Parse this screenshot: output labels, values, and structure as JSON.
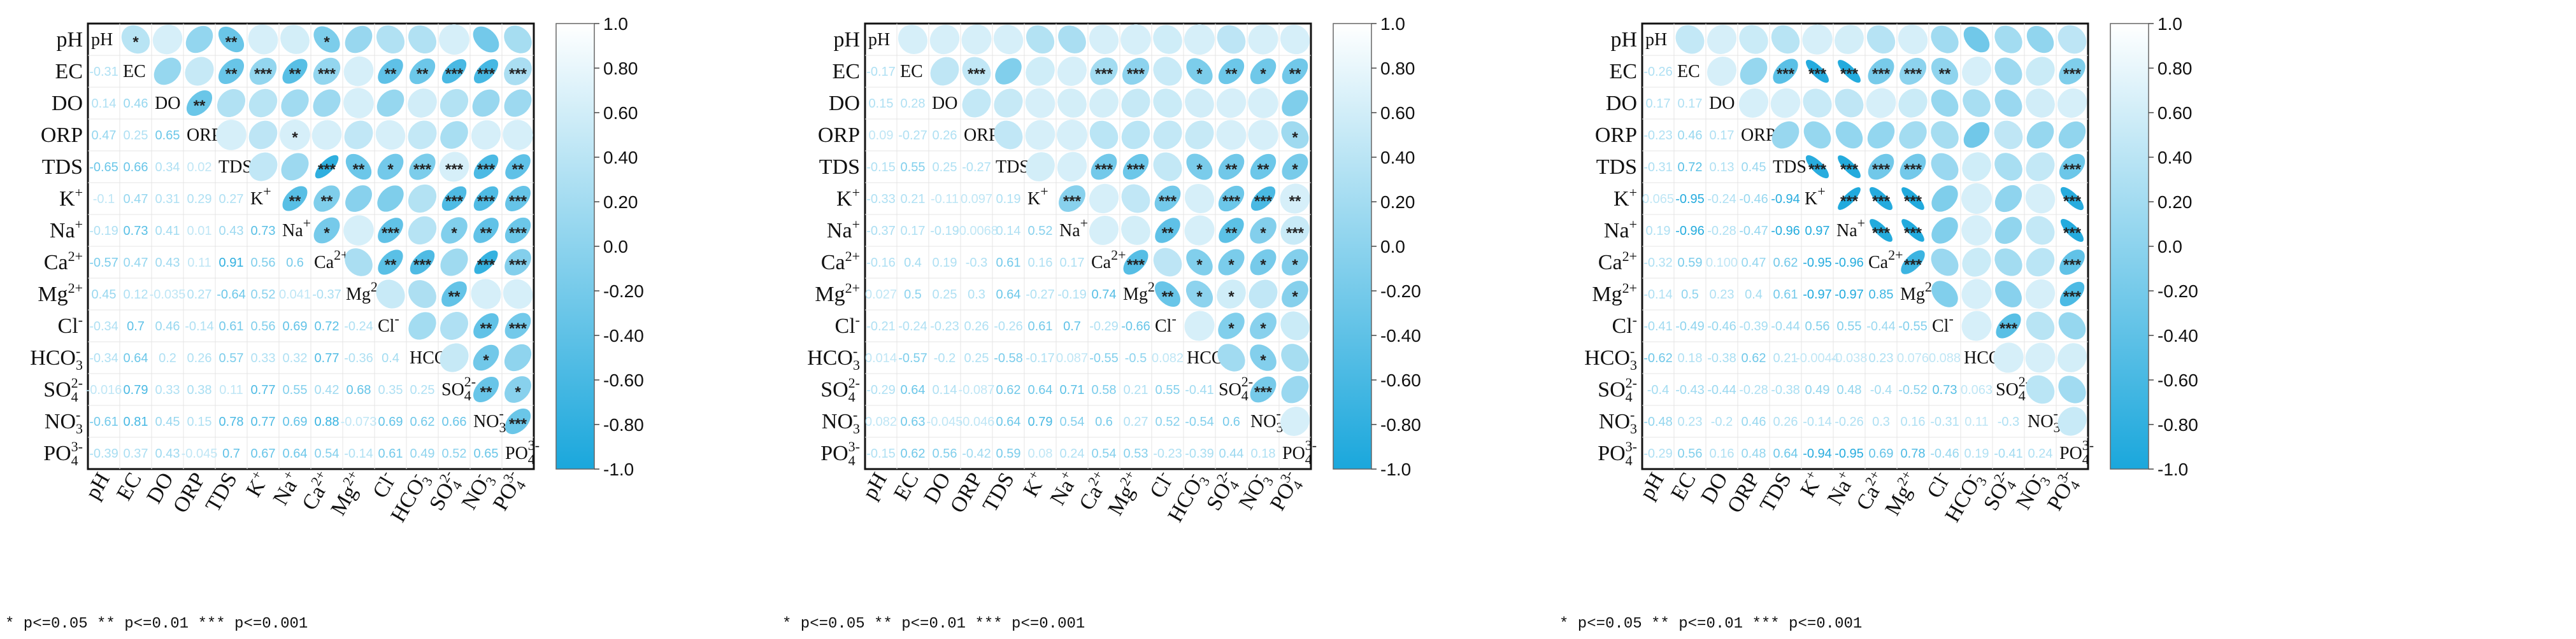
{
  "chart_data": {
    "type": "correlation-matrix",
    "variables": [
      "pH",
      "EC",
      "DO",
      "ORP",
      "TDS",
      "K+",
      "Na+",
      "Ca2+",
      "Mg2+",
      "Cl-",
      "HCO3-",
      "SO42-",
      "NO3-",
      "PO43-"
    ],
    "colorbar": {
      "min": -1.0,
      "max": 1.0,
      "ticks": [
        "1.0",
        "0.80",
        "0.60",
        "0.40",
        "0.20",
        "0.0",
        "-0.20",
        "-0.40",
        "-0.60",
        "-0.80",
        "-1.0"
      ],
      "colors": [
        "#ffffff",
        "#1aa7dc"
      ]
    },
    "significance_note": "*  p<=0.05    **  p<=0.01    ***  p<=0.001",
    "panels": [
      {
        "name": "panel-1",
        "lower": [
          [
            -0.31
          ],
          [
            0.14,
            0.46
          ],
          [
            0.47,
            0.25,
            0.65
          ],
          [
            -0.65,
            0.66,
            0.34,
            0.02
          ],
          [
            -0.1,
            0.47,
            0.31,
            0.29,
            0.27
          ],
          [
            -0.19,
            0.73,
            0.41,
            0.01,
            0.43,
            0.73
          ],
          [
            -0.57,
            0.47,
            0.43,
            0.11,
            0.91,
            0.56,
            0.6
          ],
          [
            0.45,
            0.12,
            -0.035,
            0.27,
            -0.64,
            0.52,
            0.041,
            -0.37
          ],
          [
            -0.34,
            0.7,
            0.46,
            -0.14,
            0.61,
            0.56,
            0.69,
            0.72,
            -0.24
          ],
          [
            -0.34,
            0.64,
            0.2,
            0.26,
            0.57,
            0.33,
            0.32,
            0.77,
            -0.36,
            0.4
          ],
          [
            -0.016,
            0.79,
            0.33,
            0.38,
            0.11,
            0.77,
            0.55,
            0.42,
            0.68,
            0.35,
            0.25
          ],
          [
            -0.61,
            0.81,
            0.45,
            0.15,
            0.78,
            0.77,
            0.69,
            0.88,
            -0.073,
            0.69,
            0.62,
            0.66
          ],
          [
            -0.39,
            0.37,
            0.43,
            -0.045,
            0.7,
            0.67,
            0.64,
            0.54,
            -0.14,
            0.61,
            0.49,
            0.52,
            0.65
          ]
        ],
        "stars": [
          [
            1,
            0,
            "*"
          ],
          [
            4,
            0,
            "**"
          ],
          [
            7,
            0,
            "*"
          ],
          [
            4,
            1,
            "**"
          ],
          [
            5,
            1,
            "***"
          ],
          [
            6,
            1,
            "**"
          ],
          [
            7,
            1,
            "***"
          ],
          [
            9,
            1,
            "**"
          ],
          [
            10,
            1,
            "**"
          ],
          [
            11,
            1,
            "***"
          ],
          [
            12,
            1,
            "***"
          ],
          [
            13,
            1,
            "***"
          ],
          [
            3,
            2,
            "**"
          ],
          [
            6,
            3,
            "*"
          ],
          [
            7,
            4,
            "***"
          ],
          [
            8,
            4,
            "**"
          ],
          [
            9,
            4,
            "*"
          ],
          [
            10,
            4,
            "***"
          ],
          [
            11,
            4,
            "***"
          ],
          [
            12,
            4,
            "***"
          ],
          [
            13,
            4,
            "**"
          ],
          [
            6,
            5,
            "**"
          ],
          [
            7,
            5,
            "**"
          ],
          [
            11,
            5,
            "***"
          ],
          [
            12,
            5,
            "***"
          ],
          [
            13,
            5,
            "***"
          ],
          [
            7,
            6,
            "*"
          ],
          [
            9,
            6,
            "***"
          ],
          [
            11,
            6,
            "*"
          ],
          [
            12,
            6,
            "**"
          ],
          [
            13,
            6,
            "***"
          ],
          [
            9,
            7,
            "**"
          ],
          [
            10,
            7,
            "***"
          ],
          [
            12,
            7,
            "***"
          ],
          [
            13,
            7,
            "***"
          ],
          [
            11,
            8,
            "**"
          ],
          [
            12,
            9,
            "**"
          ],
          [
            13,
            9,
            "***"
          ],
          [
            12,
            10,
            "*"
          ],
          [
            12,
            11,
            "**"
          ],
          [
            13,
            11,
            "*"
          ],
          [
            13,
            12,
            "***"
          ]
        ]
      },
      {
        "name": "panel-2",
        "lower": [
          [
            -0.17
          ],
          [
            0.15,
            0.28
          ],
          [
            0.09,
            -0.27,
            0.26
          ],
          [
            -0.15,
            0.55,
            0.25,
            -0.27
          ],
          [
            -0.33,
            0.21,
            -0.11,
            0.097,
            0.19
          ],
          [
            -0.37,
            0.17,
            -0.19,
            -0.0068,
            0.14,
            0.52
          ],
          [
            -0.16,
            0.4,
            0.19,
            -0.3,
            0.61,
            0.16,
            0.17
          ],
          [
            0.027,
            0.5,
            0.25,
            0.3,
            0.64,
            -0.27,
            -0.19,
            0.74
          ],
          [
            -0.21,
            -0.24,
            -0.23,
            0.26,
            -0.26,
            0.61,
            0.7,
            -0.29,
            -0.66
          ],
          [
            0.014,
            -0.57,
            -0.2,
            0.25,
            -0.58,
            -0.17,
            0.087,
            -0.55,
            -0.5,
            0.082
          ],
          [
            -0.29,
            0.64,
            0.14,
            -0.087,
            0.62,
            0.64,
            0.71,
            0.58,
            0.21,
            0.55,
            -0.41
          ],
          [
            0.082,
            0.63,
            -0.045,
            -0.046,
            0.64,
            0.79,
            0.54,
            0.6,
            0.27,
            0.52,
            -0.54,
            0.6
          ],
          [
            -0.15,
            0.62,
            0.56,
            -0.42,
            0.59,
            0.08,
            0.24,
            0.54,
            0.53,
            -0.23,
            -0.39,
            0.44,
            0.18
          ]
        ],
        "stars": [
          [
            3,
            1,
            "***"
          ],
          [
            7,
            1,
            "***"
          ],
          [
            8,
            1,
            "***"
          ],
          [
            10,
            1,
            "*"
          ],
          [
            11,
            1,
            "**"
          ],
          [
            12,
            1,
            "*"
          ],
          [
            13,
            1,
            "**"
          ],
          [
            13,
            3,
            "*"
          ],
          [
            7,
            4,
            "***"
          ],
          [
            8,
            4,
            "***"
          ],
          [
            10,
            4,
            "*"
          ],
          [
            11,
            4,
            "**"
          ],
          [
            12,
            4,
            "**"
          ],
          [
            13,
            4,
            "*"
          ],
          [
            6,
            5,
            "***"
          ],
          [
            9,
            5,
            "***"
          ],
          [
            11,
            5,
            "***"
          ],
          [
            12,
            5,
            "***"
          ],
          [
            13,
            5,
            "**"
          ],
          [
            9,
            6,
            "**"
          ],
          [
            11,
            6,
            "**"
          ],
          [
            12,
            6,
            "*"
          ],
          [
            13,
            6,
            "***"
          ],
          [
            8,
            7,
            "***"
          ],
          [
            10,
            7,
            "*"
          ],
          [
            11,
            7,
            "*"
          ],
          [
            12,
            7,
            "*"
          ],
          [
            13,
            7,
            "*"
          ],
          [
            9,
            8,
            "**"
          ],
          [
            10,
            8,
            "*"
          ],
          [
            11,
            8,
            "*"
          ],
          [
            13,
            8,
            "*"
          ],
          [
            11,
            9,
            "*"
          ],
          [
            12,
            9,
            "*"
          ],
          [
            12,
            10,
            "*"
          ],
          [
            12,
            11,
            "***"
          ]
        ]
      },
      {
        "name": "panel-3",
        "lower": [
          [
            -0.26
          ],
          [
            0.17,
            0.17
          ],
          [
            -0.23,
            0.46,
            0.17
          ],
          [
            -0.31,
            0.72,
            0.13,
            0.45
          ],
          [
            0.065,
            -0.95,
            -0.24,
            -0.46,
            -0.94
          ],
          [
            0.19,
            -0.96,
            -0.28,
            -0.47,
            -0.96,
            0.97
          ],
          [
            -0.32,
            0.59,
            0.1,
            0.47,
            0.62,
            -0.95,
            -0.96
          ],
          [
            -0.14,
            0.5,
            0.23,
            0.4,
            0.61,
            -0.97,
            -0.97,
            0.85
          ],
          [
            -0.41,
            -0.49,
            -0.46,
            -0.39,
            -0.44,
            0.56,
            0.55,
            -0.44,
            -0.55
          ],
          [
            -0.62,
            0.18,
            -0.38,
            0.62,
            0.21,
            -0.0044,
            -0.038,
            0.23,
            0.076,
            0.088
          ],
          [
            -0.4,
            -0.43,
            -0.44,
            -0.28,
            -0.38,
            0.49,
            0.48,
            -0.4,
            -0.52,
            0.73,
            0.063
          ],
          [
            -0.48,
            0.23,
            -0.2,
            0.46,
            0.26,
            -0.14,
            -0.26,
            0.3,
            0.16,
            -0.31,
            0.11,
            -0.3
          ],
          [
            -0.29,
            0.56,
            0.16,
            0.48,
            0.64,
            -0.94,
            -0.95,
            0.69,
            0.78,
            -0.46,
            0.19,
            -0.41,
            0.24
          ]
        ],
        "stars": [
          [
            4,
            1,
            "***"
          ],
          [
            5,
            1,
            "***"
          ],
          [
            6,
            1,
            "***"
          ],
          [
            7,
            1,
            "***"
          ],
          [
            8,
            1,
            "***"
          ],
          [
            9,
            1,
            "**"
          ],
          [
            13,
            1,
            "***"
          ],
          [
            5,
            4,
            "***"
          ],
          [
            6,
            4,
            "***"
          ],
          [
            7,
            4,
            "***"
          ],
          [
            8,
            4,
            "***"
          ],
          [
            13,
            4,
            "***"
          ],
          [
            6,
            5,
            "***"
          ],
          [
            7,
            5,
            "***"
          ],
          [
            8,
            5,
            "***"
          ],
          [
            13,
            5,
            "***"
          ],
          [
            7,
            6,
            "***"
          ],
          [
            8,
            6,
            "***"
          ],
          [
            13,
            6,
            "***"
          ],
          [
            8,
            7,
            "***"
          ],
          [
            13,
            7,
            "***"
          ],
          [
            13,
            8,
            "***"
          ],
          [
            11,
            9,
            "***"
          ]
        ]
      }
    ]
  }
}
